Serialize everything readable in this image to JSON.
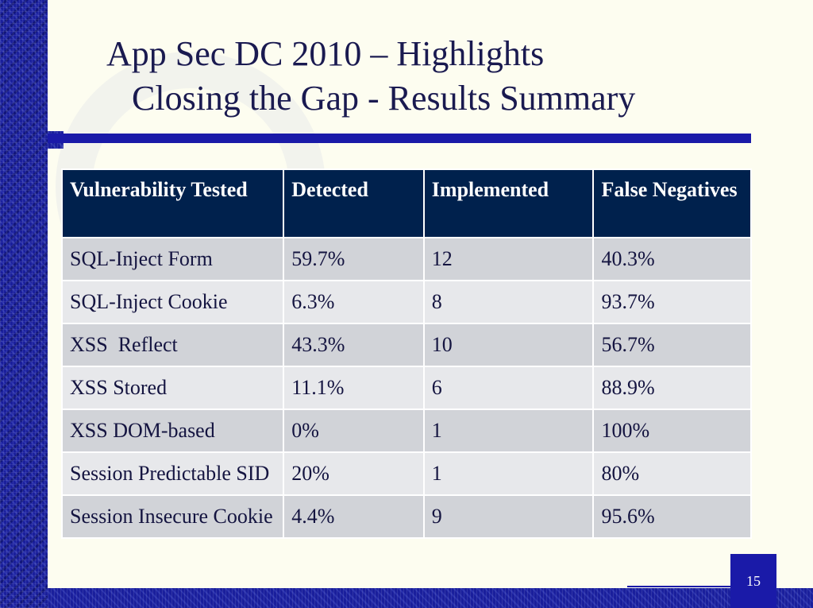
{
  "slide": {
    "title_line1": "App Sec DC 2010 – Highlights",
    "title_line2": "Closing the Gap - Results Summary",
    "page_number": "15"
  },
  "table": {
    "headers": [
      "Vulnerability Tested",
      "Detected",
      "Implemented",
      "False Negatives"
    ],
    "rows": [
      [
        "SQL-Inject Form",
        "59.7%",
        "12",
        "40.3%"
      ],
      [
        "SQL-Inject Cookie",
        "6.3%",
        "8",
        "93.7%"
      ],
      [
        "XSS  Reflect",
        "43.3%",
        "10",
        "56.7%"
      ],
      [
        "XSS Stored",
        "11.1%",
        "6",
        "88.9%"
      ],
      [
        "XSS DOM-based",
        "0%",
        "1",
        "100%"
      ],
      [
        "Session Predictable SID",
        "20%",
        "1",
        "80%"
      ],
      [
        "Session Insecure Cookie",
        "4.4%",
        "9",
        "95.6%"
      ]
    ]
  },
  "colors": {
    "header_bg": "#00214d",
    "band": "#1a1f9c",
    "row_odd": "#d1d3d8",
    "row_even": "#e7e8eb"
  }
}
